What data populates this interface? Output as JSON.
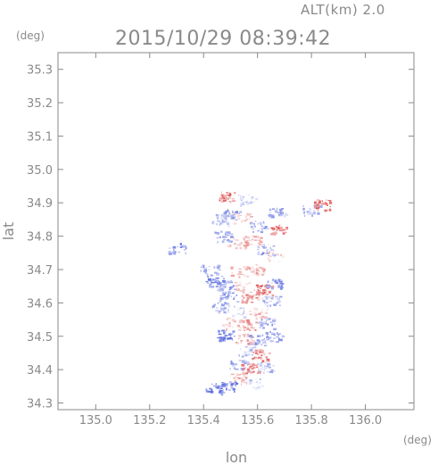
{
  "header": {
    "altitude_label": "ALT(km) 2.0",
    "timestamp": "2015/10/29 08:39:42"
  },
  "chart_data": {
    "type": "heatmap",
    "title": "2015/10/29 08:39:42",
    "subtitle": "ALT(km) 2.0",
    "xlabel": "lon",
    "ylabel": "lat",
    "x_unit": "(deg)",
    "y_unit": "(deg)",
    "xlim": [
      134.86,
      136.18
    ],
    "ylim": [
      34.28,
      35.35
    ],
    "xticks": [
      135.0,
      135.2,
      135.4,
      135.6,
      135.8,
      136.0
    ],
    "xtick_labels": [
      "135.0",
      "135.2",
      "135.4",
      "135.6",
      "135.8",
      "136.0"
    ],
    "yticks": [
      34.3,
      34.4,
      34.5,
      34.6,
      34.7,
      34.8,
      34.9,
      35.0,
      35.1,
      35.2,
      35.3
    ],
    "ytick_labels": [
      "34.3",
      "34.4",
      "34.5",
      "34.6",
      "34.7",
      "34.8",
      "34.9",
      "35.0",
      "35.1",
      "35.2",
      "35.3"
    ],
    "grid": false,
    "colors": {
      "negative": "#6070e0",
      "positive": "#e05a5a",
      "axis": "#8a8a8a"
    },
    "regions": [
      {
        "lon": 135.49,
        "lat": 34.92,
        "value": 0.7
      },
      {
        "lon": 135.56,
        "lat": 34.91,
        "value": -0.3
      },
      {
        "lon": 135.5,
        "lat": 34.865,
        "value": -0.6
      },
      {
        "lon": 135.46,
        "lat": 34.85,
        "value": -0.4
      },
      {
        "lon": 135.54,
        "lat": 34.855,
        "value": 0.3
      },
      {
        "lon": 135.67,
        "lat": 34.87,
        "value": -0.5
      },
      {
        "lon": 135.68,
        "lat": 34.82,
        "value": 0.7
      },
      {
        "lon": 135.6,
        "lat": 34.83,
        "value": -0.5
      },
      {
        "lon": 135.47,
        "lat": 34.8,
        "value": -0.5
      },
      {
        "lon": 135.52,
        "lat": 34.78,
        "value": 0.2
      },
      {
        "lon": 135.58,
        "lat": 34.79,
        "value": 0.4
      },
      {
        "lon": 135.63,
        "lat": 34.76,
        "value": -0.6
      },
      {
        "lon": 135.66,
        "lat": 34.74,
        "value": 0.2
      },
      {
        "lon": 135.8,
        "lat": 34.88,
        "value": -0.4
      },
      {
        "lon": 135.84,
        "lat": 34.895,
        "value": 0.8
      },
      {
        "lon": 135.3,
        "lat": 34.765,
        "value": -0.6
      },
      {
        "lon": 135.42,
        "lat": 34.7,
        "value": -0.5
      },
      {
        "lon": 135.53,
        "lat": 34.695,
        "value": 0.3
      },
      {
        "lon": 135.6,
        "lat": 34.7,
        "value": 0.4
      },
      {
        "lon": 135.44,
        "lat": 34.665,
        "value": -0.7
      },
      {
        "lon": 135.48,
        "lat": 34.655,
        "value": -0.6
      },
      {
        "lon": 135.54,
        "lat": 34.65,
        "value": 0.2
      },
      {
        "lon": 135.62,
        "lat": 34.64,
        "value": 0.8
      },
      {
        "lon": 135.66,
        "lat": 34.66,
        "value": -0.6
      },
      {
        "lon": 135.49,
        "lat": 34.62,
        "value": -0.5
      },
      {
        "lon": 135.57,
        "lat": 34.615,
        "value": 0.5
      },
      {
        "lon": 135.65,
        "lat": 34.605,
        "value": -0.4
      },
      {
        "lon": 135.46,
        "lat": 34.59,
        "value": -0.4
      },
      {
        "lon": 135.53,
        "lat": 34.575,
        "value": -0.2
      },
      {
        "lon": 135.6,
        "lat": 34.57,
        "value": 0.3
      },
      {
        "lon": 135.5,
        "lat": 34.54,
        "value": 0.2
      },
      {
        "lon": 135.56,
        "lat": 34.535,
        "value": 0.6
      },
      {
        "lon": 135.63,
        "lat": 34.54,
        "value": -0.5
      },
      {
        "lon": 135.48,
        "lat": 34.505,
        "value": -0.8
      },
      {
        "lon": 135.55,
        "lat": 34.495,
        "value": 0.5
      },
      {
        "lon": 135.6,
        "lat": 34.49,
        "value": -0.6
      },
      {
        "lon": 135.66,
        "lat": 34.5,
        "value": -0.5
      },
      {
        "lon": 135.56,
        "lat": 34.455,
        "value": -0.3
      },
      {
        "lon": 135.61,
        "lat": 34.445,
        "value": 0.6
      },
      {
        "lon": 135.53,
        "lat": 34.415,
        "value": -0.5
      },
      {
        "lon": 135.57,
        "lat": 34.405,
        "value": 0.7
      },
      {
        "lon": 135.63,
        "lat": 34.41,
        "value": -0.4
      },
      {
        "lon": 135.53,
        "lat": 34.375,
        "value": 0.4
      },
      {
        "lon": 135.49,
        "lat": 34.35,
        "value": -0.7
      },
      {
        "lon": 135.44,
        "lat": 34.345,
        "value": -0.8
      },
      {
        "lon": 135.58,
        "lat": 34.36,
        "value": -0.3
      }
    ]
  }
}
